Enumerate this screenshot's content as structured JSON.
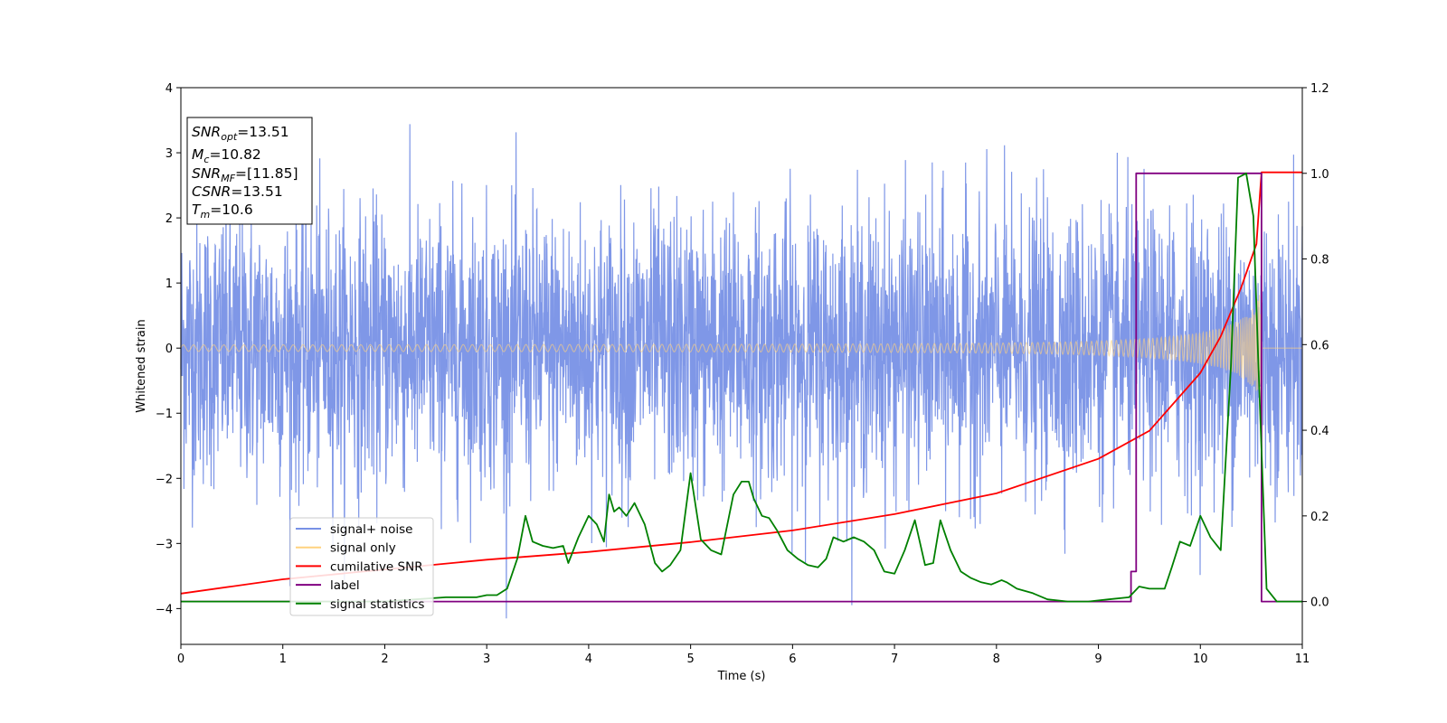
{
  "chart_data": {
    "type": "line",
    "xlabel": "Time (s)",
    "ylabel": "Whitened strain",
    "xlim": [
      0,
      11
    ],
    "ylim": [
      -4.55,
      4
    ],
    "y2lim": [
      -0.1,
      1.2
    ],
    "xticks": [
      "0",
      "1",
      "2",
      "3",
      "4",
      "5",
      "6",
      "7",
      "8",
      "9",
      "10",
      "11"
    ],
    "yticks": [
      "4",
      "3",
      "2",
      "1",
      "0",
      "−1",
      "−2",
      "−3",
      "−4"
    ],
    "y2ticks": [
      "1.2",
      "1.0",
      "0.8",
      "0.6",
      "0.4",
      "0.2",
      "0.0"
    ],
    "info_box": {
      "lines": [
        {
          "sym": "SNR",
          "sub": "opt",
          "val": "=13.51"
        },
        {
          "sym": "M",
          "sub": "c",
          "val": "=10.82"
        },
        {
          "sym": "SNR",
          "sub": "MF",
          "val": "=[11.85]"
        },
        {
          "sym": "CSNR",
          "sub": "",
          "val": "=13.51"
        },
        {
          "sym": "T",
          "sub": "m",
          "val": "=10.6"
        }
      ]
    },
    "legend": {
      "position": "lower-left",
      "items": [
        {
          "label": "signal+ noise",
          "color": "#7891e6"
        },
        {
          "label": "signal only",
          "color": "#ffd27f"
        },
        {
          "label": "cumilative SNR",
          "color": "#ff0000"
        },
        {
          "label": "label",
          "color": "#800080"
        },
        {
          "label": "signal statistics",
          "color": "#008000"
        }
      ]
    },
    "series": [
      {
        "name": "signal+ noise",
        "axis": "left",
        "color": "#7891e6",
        "description": "white noise with unit standard deviation, roughly -3.6 to 3.6"
      },
      {
        "name": "signal only",
        "axis": "left",
        "color": "#ffd27f",
        "chirp": {
          "t_start": 0,
          "t_merge": 10.6,
          "amp_start": 0.05,
          "amp_peak": 0.82
        }
      },
      {
        "name": "cumilative SNR",
        "axis": "left",
        "color": "#ff0000",
        "x": [
          0,
          1,
          2,
          3,
          4,
          5,
          6,
          7,
          8,
          9,
          9.5,
          10,
          10.2,
          10.4,
          10.55,
          10.6,
          11
        ],
        "y": [
          -3.77,
          -3.55,
          -3.4,
          -3.25,
          -3.13,
          -2.98,
          -2.8,
          -2.55,
          -2.23,
          -1.7,
          -1.27,
          -0.38,
          0.18,
          0.93,
          1.6,
          2.7,
          2.7
        ]
      },
      {
        "name": "label",
        "axis": "right",
        "color": "#800080",
        "x": [
          0,
          9.32,
          9.32,
          9.37,
          9.37,
          10.6,
          10.6,
          11
        ],
        "y": [
          0,
          0,
          0.07,
          0.07,
          1.0,
          1.0,
          0.0,
          0.0
        ]
      },
      {
        "name": "signal statistics",
        "axis": "right",
        "color": "#008000",
        "x": [
          0,
          1,
          2,
          2.3,
          2.6,
          2.9,
          3.0,
          3.1,
          3.2,
          3.3,
          3.38,
          3.45,
          3.55,
          3.65,
          3.75,
          3.8,
          3.9,
          4.0,
          4.08,
          4.15,
          4.2,
          4.25,
          4.3,
          4.37,
          4.45,
          4.55,
          4.65,
          4.72,
          4.8,
          4.9,
          5.0,
          5.1,
          5.2,
          5.3,
          5.42,
          5.5,
          5.57,
          5.62,
          5.7,
          5.77,
          5.85,
          5.95,
          6.05,
          6.15,
          6.25,
          6.33,
          6.4,
          6.5,
          6.6,
          6.7,
          6.8,
          6.9,
          7.0,
          7.1,
          7.2,
          7.3,
          7.38,
          7.45,
          7.55,
          7.65,
          7.75,
          7.85,
          7.95,
          8.05,
          8.1,
          8.2,
          8.35,
          8.5,
          8.7,
          8.9,
          9.1,
          9.3,
          9.4,
          9.5,
          9.65,
          9.72,
          9.8,
          9.9,
          10.0,
          10.1,
          10.2,
          10.3,
          10.37,
          10.45,
          10.52,
          10.57,
          10.65,
          10.75,
          11
        ],
        "y": [
          0,
          0,
          0,
          0.005,
          0.01,
          0.01,
          0.015,
          0.015,
          0.03,
          0.1,
          0.2,
          0.14,
          0.13,
          0.125,
          0.13,
          0.09,
          0.15,
          0.2,
          0.18,
          0.14,
          0.25,
          0.21,
          0.22,
          0.2,
          0.23,
          0.18,
          0.09,
          0.07,
          0.085,
          0.12,
          0.3,
          0.145,
          0.12,
          0.11,
          0.25,
          0.28,
          0.28,
          0.24,
          0.2,
          0.195,
          0.165,
          0.12,
          0.1,
          0.085,
          0.08,
          0.1,
          0.15,
          0.14,
          0.15,
          0.14,
          0.12,
          0.07,
          0.065,
          0.12,
          0.19,
          0.085,
          0.09,
          0.19,
          0.12,
          0.07,
          0.055,
          0.045,
          0.04,
          0.05,
          0.045,
          0.03,
          0.02,
          0.005,
          0.0,
          0.0,
          0.005,
          0.01,
          0.035,
          0.03,
          0.03,
          0.08,
          0.14,
          0.13,
          0.2,
          0.15,
          0.12,
          0.55,
          0.99,
          1.0,
          0.9,
          0.55,
          0.03,
          0.0,
          0.0
        ]
      }
    ]
  }
}
